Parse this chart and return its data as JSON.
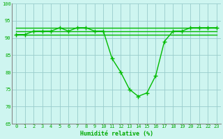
{
  "x": [
    0,
    1,
    2,
    3,
    4,
    5,
    6,
    7,
    8,
    9,
    10,
    11,
    12,
    13,
    14,
    15,
    16,
    17,
    18,
    19,
    20,
    21,
    22,
    23
  ],
  "y_main": [
    91,
    91,
    92,
    92,
    92,
    93,
    92,
    93,
    93,
    92,
    92,
    84,
    80,
    75,
    73,
    74,
    79,
    89,
    92,
    92,
    93,
    93,
    93,
    93
  ],
  "y_ref1": [
    91,
    91,
    91,
    91,
    91,
    91,
    91,
    91,
    91,
    91,
    91,
    91,
    91,
    91,
    91,
    91,
    91,
    91,
    91,
    91,
    91,
    91,
    91,
    91
  ],
  "y_ref2": [
    92,
    92,
    92,
    92,
    92,
    92,
    92,
    92,
    92,
    92,
    92,
    92,
    92,
    92,
    92,
    92,
    92,
    92,
    92,
    92,
    92,
    92,
    92,
    92
  ],
  "y_ref3": [
    93,
    93,
    93,
    93,
    93,
    93,
    93,
    93,
    93,
    93,
    93,
    93,
    93,
    93,
    93,
    93,
    93,
    93,
    93,
    93,
    93,
    93,
    93,
    93
  ],
  "xlim": [
    -0.5,
    23.5
  ],
  "ylim": [
    65,
    100
  ],
  "yticks": [
    65,
    70,
    75,
    80,
    85,
    90,
    95,
    100
  ],
  "xticks": [
    0,
    1,
    2,
    3,
    4,
    5,
    6,
    7,
    8,
    9,
    10,
    11,
    12,
    13,
    14,
    15,
    16,
    17,
    18,
    19,
    20,
    21,
    22,
    23
  ],
  "xlabel": "Humidité relative (%)",
  "line_color": "#00bb00",
  "bg_color": "#cef5f0",
  "grid_color": "#99cccc",
  "tick_color": "#00aa00",
  "label_color": "#00aa00",
  "marker": "+",
  "linewidth": 1.0,
  "markersize": 4,
  "spine_color": "#888888"
}
